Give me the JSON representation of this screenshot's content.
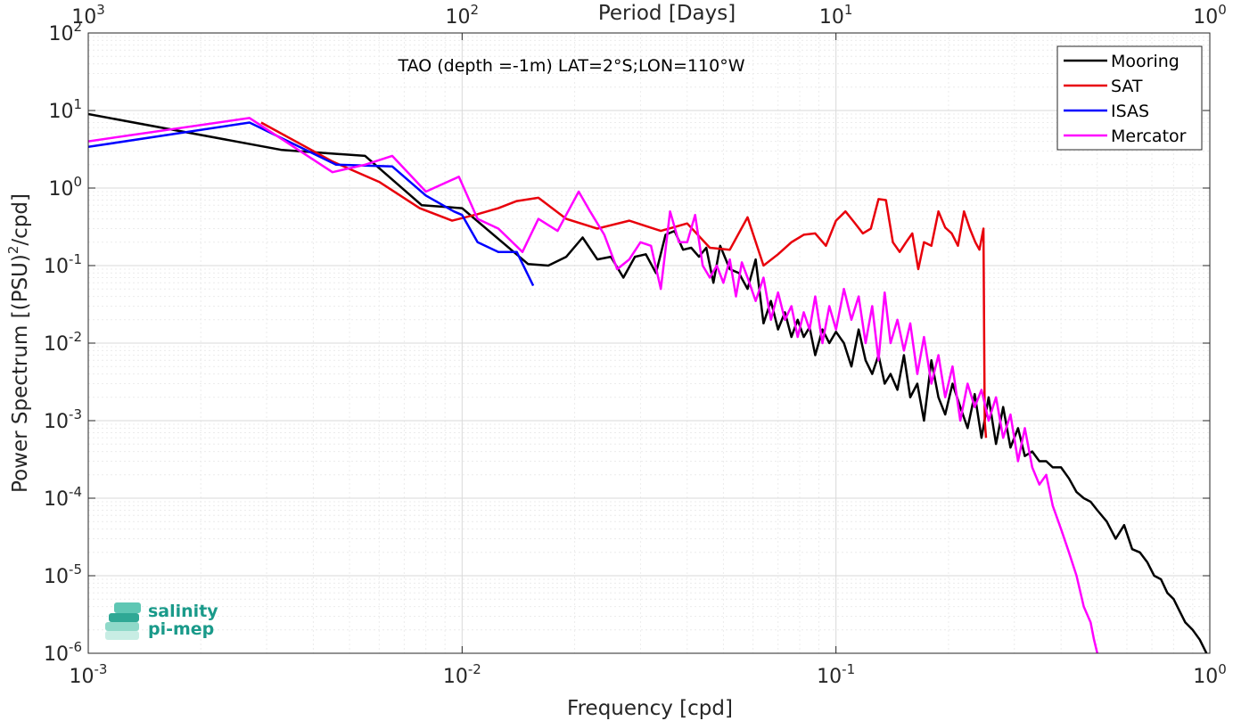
{
  "chart_data": {
    "type": "line",
    "title": "TAO (depth =-1m) LAT=2°S;LON=110°W",
    "xlabel": "Frequency [cpd]",
    "ylabel_parts": [
      "Power Spectrum [(PSU)",
      "2",
      "/cpd]"
    ],
    "top_xlabel": "Period [Days]",
    "x_scale": "log",
    "y_scale": "log",
    "xlim": [
      0.001,
      1
    ],
    "ylim": [
      1e-06,
      100
    ],
    "x_ticks": [
      {
        "base": "10",
        "exp": "-3",
        "value": 0.001
      },
      {
        "base": "10",
        "exp": "-2",
        "value": 0.01
      },
      {
        "base": "10",
        "exp": "-1",
        "value": 0.1
      },
      {
        "base": "10",
        "exp": "0",
        "value": 1
      }
    ],
    "top_ticks": [
      {
        "base": "10",
        "exp": "3",
        "value": 0.001
      },
      {
        "base": "10",
        "exp": "2",
        "value": 0.01
      },
      {
        "base": "10",
        "exp": "1",
        "value": 0.1
      },
      {
        "base": "10",
        "exp": "0",
        "value": 1
      }
    ],
    "y_ticks": [
      {
        "base": "10",
        "exp": "2",
        "value": 100
      },
      {
        "base": "10",
        "exp": "1",
        "value": 10
      },
      {
        "base": "10",
        "exp": "0",
        "value": 1
      },
      {
        "base": "10",
        "exp": "-1",
        "value": 0.1
      },
      {
        "base": "10",
        "exp": "-2",
        "value": 0.01
      },
      {
        "base": "10",
        "exp": "-3",
        "value": 0.001
      },
      {
        "base": "10",
        "exp": "-4",
        "value": 0.0001
      },
      {
        "base": "10",
        "exp": "-5",
        "value": 1e-05
      },
      {
        "base": "10",
        "exp": "-6",
        "value": 1e-06
      }
    ],
    "grid": true,
    "minor_grid": true,
    "legend_position": "top-right",
    "series": [
      {
        "name": "Mooring",
        "color": "#000000",
        "x": [
          0.001,
          0.0033,
          0.0055,
          0.0078,
          0.01,
          0.015,
          0.017,
          0.019,
          0.021,
          0.023,
          0.025,
          0.027,
          0.029,
          0.031,
          0.033,
          0.035,
          0.037,
          0.039,
          0.041,
          0.043,
          0.045,
          0.047,
          0.049,
          0.052,
          0.055,
          0.058,
          0.061,
          0.064,
          0.067,
          0.07,
          0.073,
          0.076,
          0.079,
          0.082,
          0.085,
          0.088,
          0.092,
          0.096,
          0.1,
          0.105,
          0.11,
          0.115,
          0.12,
          0.125,
          0.13,
          0.135,
          0.14,
          0.146,
          0.152,
          0.158,
          0.165,
          0.172,
          0.18,
          0.188,
          0.196,
          0.205,
          0.215,
          0.225,
          0.235,
          0.245,
          0.256,
          0.268,
          0.28,
          0.293,
          0.307,
          0.32,
          0.335,
          0.35,
          0.365,
          0.38,
          0.4,
          0.42,
          0.44,
          0.46,
          0.48,
          0.5,
          0.53,
          0.56,
          0.59,
          0.62,
          0.65,
          0.68,
          0.71,
          0.74,
          0.77,
          0.8,
          0.83,
          0.86,
          0.9,
          0.94,
          0.98
        ],
        "y": [
          9,
          3.1,
          2.6,
          0.6,
          0.55,
          0.105,
          0.1,
          0.13,
          0.23,
          0.12,
          0.13,
          0.07,
          0.13,
          0.14,
          0.08,
          0.25,
          0.28,
          0.16,
          0.17,
          0.13,
          0.17,
          0.06,
          0.18,
          0.09,
          0.08,
          0.05,
          0.12,
          0.018,
          0.035,
          0.015,
          0.025,
          0.012,
          0.02,
          0.012,
          0.016,
          0.007,
          0.015,
          0.01,
          0.014,
          0.01,
          0.005,
          0.015,
          0.006,
          0.004,
          0.007,
          0.003,
          0.004,
          0.0025,
          0.007,
          0.002,
          0.003,
          0.001,
          0.006,
          0.002,
          0.0012,
          0.003,
          0.0015,
          0.0008,
          0.0022,
          0.0006,
          0.002,
          0.0005,
          0.0015,
          0.00045,
          0.0008,
          0.00035,
          0.0004,
          0.0003,
          0.0003,
          0.00025,
          0.00025,
          0.00018,
          0.00012,
          0.0001,
          9e-05,
          7e-05,
          5e-05,
          3e-05,
          4.5e-05,
          2.2e-05,
          2e-05,
          1.5e-05,
          1e-05,
          9e-06,
          6e-06,
          5e-06,
          3.5e-06,
          2.5e-06,
          2e-06,
          1.5e-06,
          1e-06
        ]
      },
      {
        "name": "SAT",
        "color": "#e8000b",
        "x": [
          0.0029,
          0.0045,
          0.006,
          0.0077,
          0.0094,
          0.011,
          0.0125,
          0.014,
          0.016,
          0.019,
          0.023,
          0.028,
          0.034,
          0.04,
          0.046,
          0.052,
          0.058,
          0.064,
          0.07,
          0.076,
          0.082,
          0.088,
          0.094,
          0.1,
          0.106,
          0.112,
          0.118,
          0.124,
          0.13,
          0.136,
          0.142,
          0.148,
          0.154,
          0.16,
          0.166,
          0.172,
          0.18,
          0.188,
          0.196,
          0.204,
          0.212,
          0.22,
          0.228,
          0.236,
          0.242,
          0.248,
          0.25,
          0.252
        ],
        "y": [
          7,
          2.2,
          1.2,
          0.55,
          0.38,
          0.46,
          0.55,
          0.68,
          0.75,
          0.4,
          0.3,
          0.38,
          0.28,
          0.35,
          0.17,
          0.16,
          0.42,
          0.1,
          0.14,
          0.2,
          0.25,
          0.26,
          0.18,
          0.38,
          0.5,
          0.36,
          0.26,
          0.3,
          0.72,
          0.7,
          0.2,
          0.15,
          0.2,
          0.26,
          0.09,
          0.2,
          0.18,
          0.5,
          0.31,
          0.26,
          0.18,
          0.5,
          0.3,
          0.2,
          0.16,
          0.3,
          0.001,
          0.0006
        ]
      },
      {
        "name": "ISAS",
        "color": "#0000ff",
        "x": [
          0.001,
          0.0027,
          0.0046,
          0.0065,
          0.008,
          0.0095,
          0.01,
          0.011,
          0.0125,
          0.014,
          0.0155
        ],
        "y": [
          3.4,
          7,
          2,
          1.9,
          0.8,
          0.5,
          0.45,
          0.2,
          0.15,
          0.15,
          0.055
        ]
      },
      {
        "name": "Mercator",
        "color": "#ff00ff",
        "x": [
          0.001,
          0.0027,
          0.0045,
          0.0055,
          0.0065,
          0.008,
          0.0098,
          0.011,
          0.0125,
          0.0145,
          0.016,
          0.018,
          0.0205,
          0.022,
          0.024,
          0.026,
          0.028,
          0.03,
          0.032,
          0.034,
          0.036,
          0.038,
          0.04,
          0.042,
          0.044,
          0.046,
          0.048,
          0.05,
          0.052,
          0.054,
          0.056,
          0.058,
          0.061,
          0.064,
          0.067,
          0.07,
          0.073,
          0.076,
          0.079,
          0.082,
          0.085,
          0.088,
          0.092,
          0.096,
          0.1,
          0.105,
          0.11,
          0.115,
          0.12,
          0.125,
          0.13,
          0.135,
          0.14,
          0.146,
          0.152,
          0.158,
          0.165,
          0.172,
          0.18,
          0.188,
          0.196,
          0.205,
          0.215,
          0.225,
          0.235,
          0.245,
          0.256,
          0.268,
          0.28,
          0.293,
          0.307,
          0.32,
          0.335,
          0.35,
          0.365,
          0.38,
          0.4,
          0.42,
          0.44,
          0.46,
          0.48,
          0.49,
          0.5
        ],
        "y": [
          4,
          8,
          1.6,
          2,
          2.6,
          0.9,
          1.4,
          0.4,
          0.3,
          0.15,
          0.4,
          0.28,
          0.9,
          0.5,
          0.25,
          0.09,
          0.12,
          0.2,
          0.18,
          0.05,
          0.5,
          0.2,
          0.2,
          0.45,
          0.1,
          0.07,
          0.1,
          0.06,
          0.12,
          0.04,
          0.11,
          0.07,
          0.035,
          0.07,
          0.02,
          0.045,
          0.02,
          0.03,
          0.012,
          0.025,
          0.015,
          0.04,
          0.01,
          0.03,
          0.015,
          0.05,
          0.02,
          0.04,
          0.01,
          0.03,
          0.006,
          0.045,
          0.01,
          0.02,
          0.008,
          0.018,
          0.004,
          0.012,
          0.003,
          0.007,
          0.002,
          0.005,
          0.001,
          0.003,
          0.0015,
          0.0025,
          0.001,
          0.002,
          0.0006,
          0.0012,
          0.0003,
          0.0008,
          0.00025,
          0.00015,
          0.0002,
          8e-05,
          4e-05,
          2e-05,
          1e-05,
          4e-06,
          2.5e-06,
          1.5e-06,
          1e-06
        ]
      }
    ]
  },
  "logo": {
    "line1": "salinity",
    "line2": "pi-mep",
    "color": "#1a9a8a"
  }
}
